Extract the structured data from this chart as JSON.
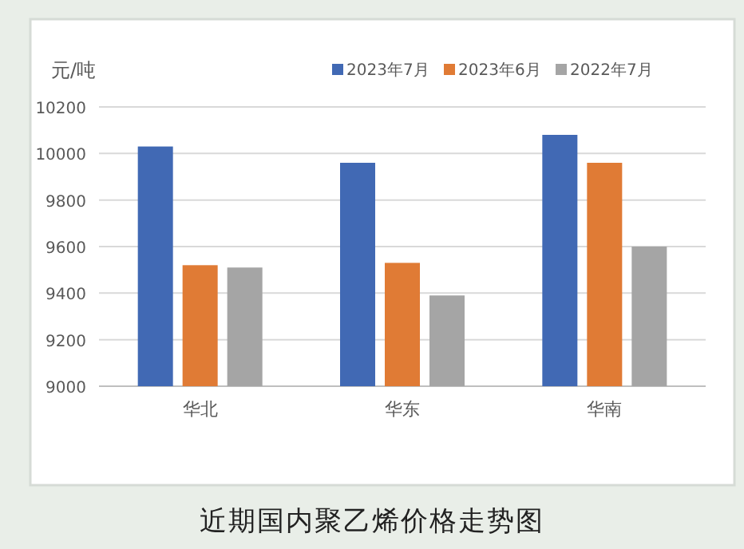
{
  "chart_data": {
    "type": "bar",
    "title": "近期国内聚乙烯价格走势图",
    "ylabel": "元/吨",
    "categories": [
      "华北",
      "华东",
      "华南"
    ],
    "series": [
      {
        "name": "2023年7月",
        "color": "#4169b4",
        "values": [
          10030,
          9960,
          10080
        ]
      },
      {
        "name": "2023年6月",
        "color": "#e07b35",
        "values": [
          9520,
          9530,
          9960
        ]
      },
      {
        "name": "2022年7月",
        "color": "#a5a5a5",
        "values": [
          9510,
          9390,
          9600
        ]
      }
    ],
    "ylim": [
      9000,
      10200
    ],
    "yticks": [
      9000,
      9200,
      9400,
      9600,
      9800,
      10000,
      10200
    ],
    "grid": "y",
    "legend": "top right"
  }
}
